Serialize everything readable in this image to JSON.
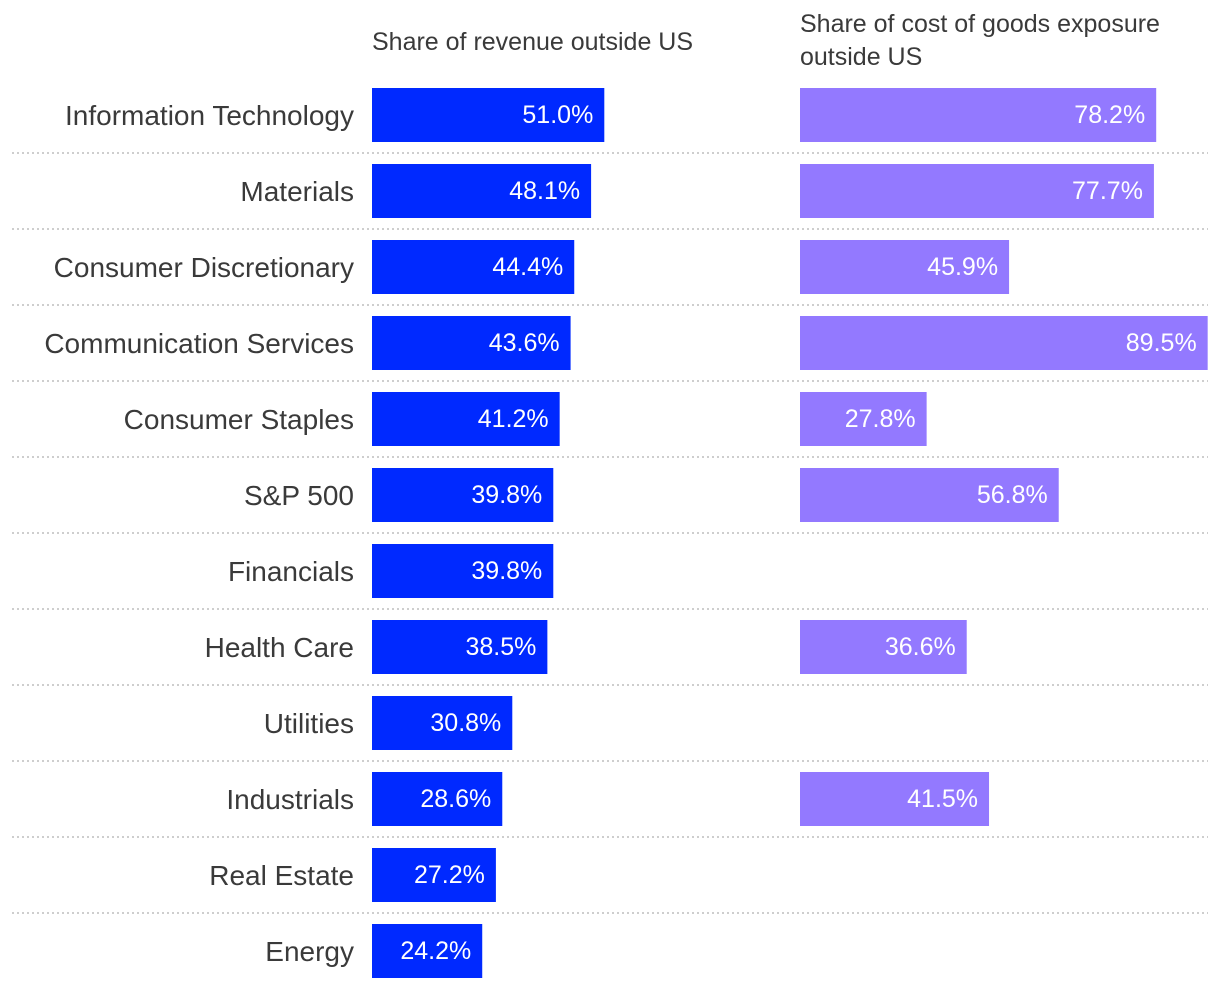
{
  "chart_data": {
    "type": "bar",
    "orientation": "horizontal",
    "categories": [
      "Information Technology",
      "Materials",
      "Consumer Discretionary",
      "Communication Services",
      "Consumer Staples",
      "S&P 500",
      "Financials",
      "Health Care",
      "Utilities",
      "Industrials",
      "Real Estate",
      "Energy"
    ],
    "series": [
      {
        "name": "Share of revenue outside US",
        "title_lines": [
          "Share of revenue outside US"
        ],
        "color": "#0029ff",
        "values": [
          51.0,
          48.1,
          44.4,
          43.6,
          41.2,
          39.8,
          39.8,
          38.5,
          30.8,
          28.6,
          27.2,
          24.2
        ],
        "labels": [
          "51.0%",
          "48.1%",
          "44.4%",
          "43.6%",
          "41.2%",
          "39.8%",
          "39.8%",
          "38.5%",
          "30.8%",
          "28.6%",
          "27.2%",
          "24.2%"
        ]
      },
      {
        "name": "Share of cost of goods exposure outside US",
        "title_lines": [
          "Share of cost of goods exposure",
          "outside US"
        ],
        "color": "#9379ff",
        "values": [
          78.2,
          77.7,
          45.9,
          89.5,
          27.8,
          56.8,
          null,
          36.6,
          null,
          41.5,
          null,
          null
        ],
        "labels": [
          "78.2%",
          "77.7%",
          "45.9%",
          "89.5%",
          "27.8%",
          "56.8%",
          null,
          "36.6%",
          null,
          "41.5%",
          null,
          null
        ]
      }
    ],
    "value_unit": "%",
    "xlim": [
      0,
      100
    ],
    "grid": false,
    "separators": "dotted"
  }
}
